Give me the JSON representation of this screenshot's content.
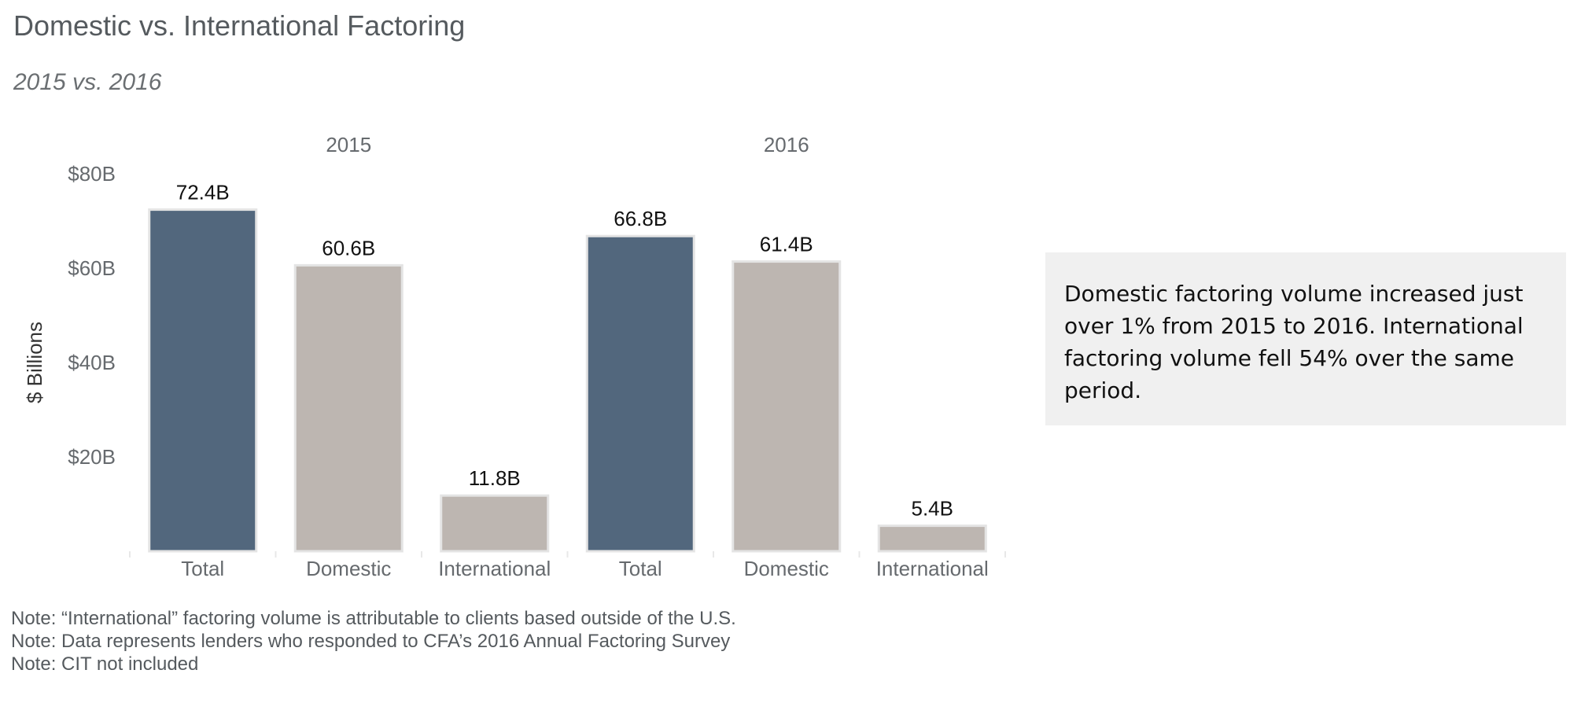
{
  "title": "Domestic vs. International Factoring",
  "subtitle": "2015 vs. 2016",
  "callout": "Domestic factoring volume increased just over 1% from 2015 to 2016. International factoring volume fell 54% over the same period.",
  "notes": [
    "Note:  “International” factoring volume is attributable to clients based outside of the U.S.",
    "Note: Data represents lenders who responded to CFA’s 2016 Annual Factoring Survey",
    "Note: CIT not included"
  ],
  "colors": {
    "total": "#52677d",
    "component": "#bdb6b1",
    "bar_outline": "#e4e4e4",
    "axis_text": "#666a6e",
    "callout_bg": "#f0f0f0"
  },
  "chart_data": {
    "type": "bar",
    "ylabel": "$ Billions",
    "ylim": [
      0,
      80
    ],
    "yticks": [
      {
        "value": 20,
        "label": "$20B"
      },
      {
        "value": 40,
        "label": "$40B"
      },
      {
        "value": 60,
        "label": "$60B"
      },
      {
        "value": 80,
        "label": "$80B"
      }
    ],
    "grid": false,
    "panels": [
      {
        "header": "2015",
        "bars": [
          {
            "category": "Total",
            "value": 72.4,
            "label": "72.4B",
            "kind": "total"
          },
          {
            "category": "Domestic",
            "value": 60.6,
            "label": "60.6B",
            "kind": "component"
          },
          {
            "category": "International",
            "value": 11.8,
            "label": "11.8B",
            "kind": "component"
          }
        ]
      },
      {
        "header": "2016",
        "bars": [
          {
            "category": "Total",
            "value": 66.8,
            "label": "66.8B",
            "kind": "total"
          },
          {
            "category": "Domestic",
            "value": 61.4,
            "label": "61.4B",
            "kind": "component"
          },
          {
            "category": "International",
            "value": 5.4,
            "label": "5.4B",
            "kind": "component"
          }
        ]
      }
    ]
  }
}
